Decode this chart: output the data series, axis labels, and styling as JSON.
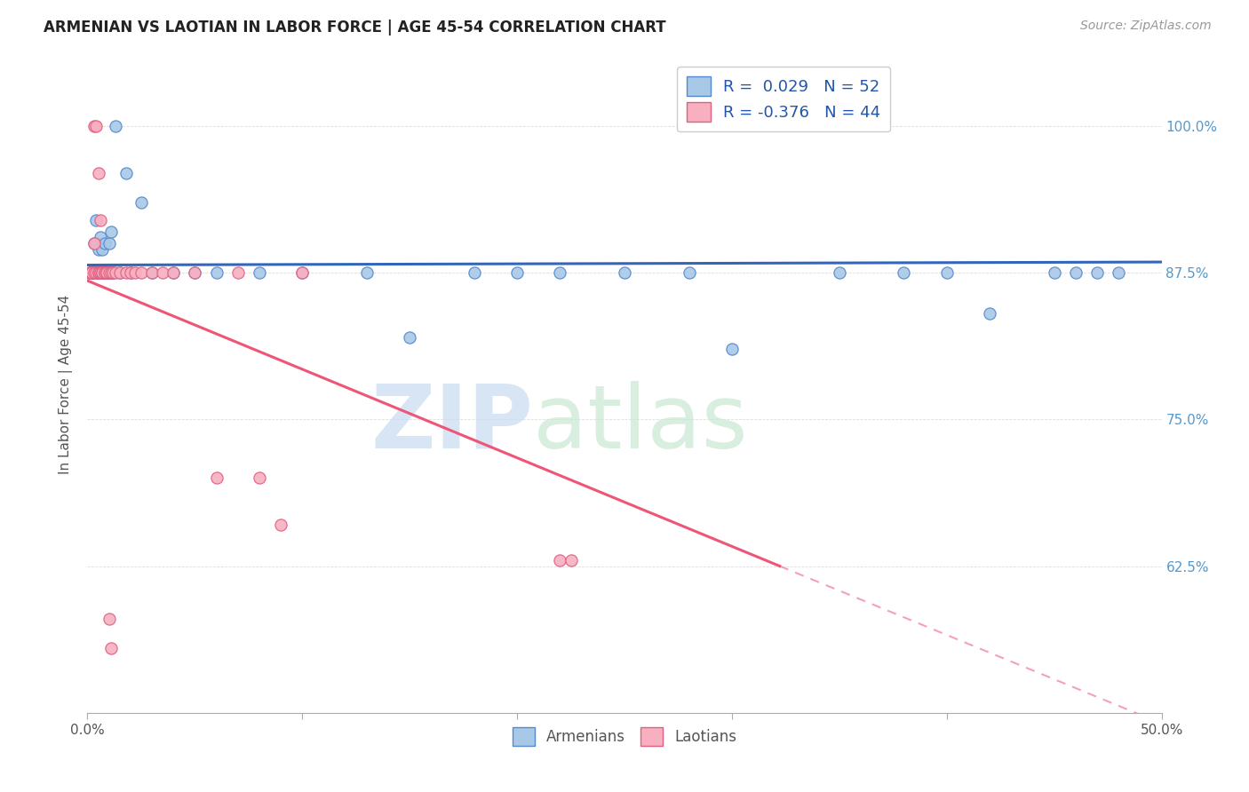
{
  "title": "ARMENIAN VS LAOTIAN IN LABOR FORCE | AGE 45-54 CORRELATION CHART",
  "source": "Source: ZipAtlas.com",
  "ylabel": "In Labor Force | Age 45-54",
  "xlim": [
    0.0,
    0.5
  ],
  "ylim": [
    0.5,
    1.06
  ],
  "xtick_vals": [
    0.0,
    0.1,
    0.2,
    0.3,
    0.4,
    0.5
  ],
  "xtick_labels_show": [
    "0.0%",
    "",
    "",
    "",
    "",
    "50.0%"
  ],
  "ytick_vals": [
    0.625,
    0.75,
    0.875,
    1.0
  ],
  "ytick_labels": [
    "62.5%",
    "75.0%",
    "87.5%",
    "100.0%"
  ],
  "armenian_color": "#a8c8e8",
  "armenian_edge": "#5588cc",
  "laotian_color": "#f8b0c0",
  "laotian_edge": "#e06080",
  "armenian_line_color": "#3366bb",
  "laotian_line_color": "#ee5577",
  "legend_R_armenian": "0.029",
  "legend_N_armenian": "52",
  "legend_R_laotian": "-0.376",
  "legend_N_laotian": "44",
  "background_color": "#ffffff",
  "grid_color": "#dddddd",
  "text_color": "#555555",
  "right_axis_color": "#5599cc",
  "arm_x": [
    0.001,
    0.002,
    0.002,
    0.003,
    0.003,
    0.004,
    0.004,
    0.004,
    0.005,
    0.005,
    0.005,
    0.006,
    0.006,
    0.007,
    0.007,
    0.007,
    0.008,
    0.008,
    0.009,
    0.009,
    0.01,
    0.01,
    0.011,
    0.011,
    0.012,
    0.013,
    0.015,
    0.018,
    0.02,
    0.025,
    0.03,
    0.04,
    0.05,
    0.06,
    0.08,
    0.1,
    0.13,
    0.15,
    0.18,
    0.2,
    0.22,
    0.25,
    0.28,
    0.3,
    0.35,
    0.38,
    0.4,
    0.42,
    0.45,
    0.46,
    0.47,
    0.48
  ],
  "arm_y": [
    0.875,
    0.875,
    0.875,
    0.875,
    0.9,
    0.875,
    0.9,
    0.92,
    0.875,
    0.875,
    0.895,
    0.875,
    0.905,
    0.875,
    0.875,
    0.895,
    0.875,
    0.9,
    0.875,
    0.875,
    0.875,
    0.9,
    0.875,
    0.91,
    0.875,
    1.0,
    0.875,
    0.96,
    0.875,
    0.935,
    0.875,
    0.875,
    0.875,
    0.875,
    0.875,
    0.875,
    0.875,
    0.82,
    0.875,
    0.875,
    0.875,
    0.875,
    0.875,
    0.81,
    0.875,
    0.875,
    0.875,
    0.84,
    0.875,
    0.875,
    0.875,
    0.875
  ],
  "lao_x": [
    0.001,
    0.001,
    0.002,
    0.002,
    0.003,
    0.003,
    0.003,
    0.004,
    0.004,
    0.005,
    0.005,
    0.005,
    0.005,
    0.006,
    0.006,
    0.006,
    0.007,
    0.007,
    0.008,
    0.008,
    0.009,
    0.009,
    0.01,
    0.011,
    0.012,
    0.013,
    0.015,
    0.018,
    0.02,
    0.022,
    0.025,
    0.03,
    0.035,
    0.04,
    0.05,
    0.06,
    0.07,
    0.08,
    0.09,
    0.1,
    0.22,
    0.225,
    0.01,
    0.011
  ],
  "lao_y": [
    0.875,
    0.875,
    0.875,
    0.875,
    0.875,
    0.9,
    1.0,
    0.875,
    1.0,
    0.875,
    0.875,
    0.875,
    0.96,
    0.875,
    0.875,
    0.92,
    0.875,
    0.875,
    0.875,
    0.875,
    0.875,
    0.875,
    0.875,
    0.875,
    0.875,
    0.875,
    0.875,
    0.875,
    0.875,
    0.875,
    0.875,
    0.875,
    0.875,
    0.875,
    0.875,
    0.7,
    0.875,
    0.7,
    0.66,
    0.875,
    0.63,
    0.63,
    0.58,
    0.555
  ]
}
